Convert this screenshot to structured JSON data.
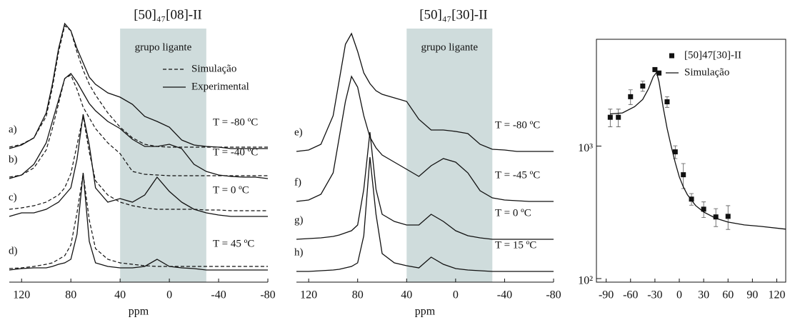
{
  "chart_data": [
    {
      "type": "line",
      "title": "[50]₄₇[08]-II",
      "xlabel": "ppm",
      "xlim": [
        130,
        -80
      ],
      "xticks": [
        120,
        80,
        40,
        0,
        -40,
        -80
      ],
      "band": [
        40,
        -30
      ],
      "band_label": "grupo ligante",
      "color": "#111111",
      "legend": [
        {
          "name": "Simulação",
          "style": "dashed"
        },
        {
          "name": "Experimental",
          "style": "solid"
        }
      ],
      "x": [
        130,
        120,
        110,
        100,
        95,
        90,
        85,
        80,
        75,
        70,
        65,
        60,
        50,
        40,
        30,
        20,
        10,
        0,
        -10,
        -20,
        -30,
        -40,
        -50,
        -60,
        -70,
        -80
      ],
      "series": [
        {
          "name": "a)",
          "label": "T = -80 ºC",
          "values": [
            0,
            0.05,
            0.15,
            0.5,
            0.9,
            1.4,
            1.75,
            1.65,
            1.4,
            1.2,
            1.0,
            0.9,
            0.78,
            0.72,
            0.62,
            0.45,
            0.38,
            0.3,
            0.12,
            0.05,
            0.03,
            0.02,
            0,
            0,
            0,
            0
          ],
          "simulation": [
            0.02,
            0.06,
            0.15,
            0.45,
            0.85,
            1.35,
            1.72,
            1.65,
            1.35,
            1.1,
            0.9,
            0.75,
            0.5,
            0.3,
            0.15,
            0.06,
            0.03,
            0.02,
            0.02,
            0.02,
            0.02,
            0.02,
            0.02,
            0.02,
            0.02,
            0.02
          ]
        },
        {
          "name": "b)",
          "label": "T = -40 ºC",
          "values": [
            0,
            0.05,
            0.2,
            0.5,
            0.8,
            1.1,
            1.4,
            1.47,
            1.35,
            1.2,
            1.05,
            0.95,
            0.8,
            0.7,
            0.55,
            0.45,
            0.45,
            0.48,
            0.42,
            0.2,
            0.1,
            0.05,
            0.03,
            0.02,
            0.02,
            0
          ],
          "simulation": [
            0.02,
            0.05,
            0.15,
            0.4,
            0.7,
            1.05,
            1.4,
            1.45,
            1.25,
            1.0,
            0.85,
            0.7,
            0.5,
            0.35,
            0.1,
            0.06,
            0.05,
            0.04,
            0.04,
            0.04,
            0.04,
            0.04,
            0.04,
            0.04,
            0.04,
            0.04
          ]
        },
        {
          "name": "c)",
          "label": "T =  0 ºC",
          "values": [
            0,
            0.05,
            0.05,
            0.1,
            0.15,
            0.2,
            0.3,
            0.4,
            0.8,
            1.43,
            1.0,
            0.4,
            0.2,
            0.25,
            0.2,
            0.3,
            0.55,
            0.35,
            0.2,
            0.1,
            0.05,
            0.02,
            0,
            0,
            0,
            0
          ],
          "simulation": [
            0.1,
            0.12,
            0.15,
            0.2,
            0.25,
            0.3,
            0.4,
            0.6,
            1.0,
            1.4,
            0.9,
            0.5,
            0.3,
            0.2,
            0.15,
            0.12,
            0.1,
            0.1,
            0.1,
            0.1,
            0.09,
            0.09,
            0.08,
            0.08,
            0.08,
            0.08
          ]
        },
        {
          "name": "d)",
          "label": "T = 45 ºC",
          "values": [
            0,
            0.02,
            0.03,
            0.03,
            0.05,
            0.08,
            0.1,
            0.15,
            0.5,
            1.36,
            0.4,
            0.1,
            0.05,
            0.03,
            0.03,
            0.05,
            0.15,
            0.05,
            0.03,
            0.02,
            0,
            0,
            0,
            0,
            0,
            0
          ],
          "simulation": [
            0.02,
            0.03,
            0.05,
            0.08,
            0.1,
            0.15,
            0.2,
            0.35,
            0.8,
            1.35,
            0.7,
            0.3,
            0.15,
            0.1,
            0.08,
            0.06,
            0.05,
            0.05,
            0.05,
            0.05,
            0.05,
            0.05,
            0.05,
            0.05,
            0.05,
            0.05
          ]
        }
      ]
    },
    {
      "type": "line",
      "title": "[50]₄₇[30]-II",
      "xlabel": "ppm",
      "xlim": [
        130,
        -80
      ],
      "xticks": [
        120,
        80,
        40,
        0,
        -40,
        -80
      ],
      "band": [
        40,
        -30
      ],
      "band_label": "grupo ligante",
      "color": "#111111",
      "x": [
        130,
        120,
        110,
        100,
        95,
        90,
        85,
        80,
        75,
        70,
        65,
        60,
        50,
        40,
        30,
        20,
        10,
        0,
        -10,
        -20,
        -30,
        -40,
        -50,
        -60,
        -70,
        -80
      ],
      "series": [
        {
          "name": "e)",
          "label": "T = -80 ºC",
          "values": [
            0,
            0.02,
            0.1,
            0.5,
            1.0,
            1.5,
            1.65,
            1.4,
            1.1,
            0.95,
            0.85,
            0.8,
            0.75,
            0.7,
            0.45,
            0.3,
            0.3,
            0.28,
            0.25,
            0.1,
            0.03,
            0.02,
            0,
            0,
            0,
            0
          ]
        },
        {
          "name": "f)",
          "label": "T = -45 ºC",
          "values": [
            0,
            0.02,
            0.1,
            0.4,
            0.9,
            1.4,
            1.75,
            1.6,
            1.2,
            0.9,
            0.75,
            0.65,
            0.55,
            0.45,
            0.35,
            0.5,
            0.6,
            0.55,
            0.4,
            0.15,
            0.05,
            0.02,
            0.01,
            0,
            0,
            0
          ]
        },
        {
          "name": "g)",
          "label": "T =  0 ºC",
          "values": [
            0,
            0.01,
            0.02,
            0.04,
            0.06,
            0.09,
            0.12,
            0.2,
            0.7,
            1.5,
            0.7,
            0.35,
            0.25,
            0.2,
            0.2,
            0.35,
            0.25,
            0.12,
            0.05,
            0.02,
            0,
            0,
            0,
            0,
            0,
            0
          ]
        },
        {
          "name": "h)",
          "label": "T = 15 ºC",
          "values": [
            0,
            0,
            0.01,
            0.02,
            0.03,
            0.05,
            0.07,
            0.12,
            0.5,
            1.6,
            0.8,
            0.25,
            0.12,
            0.08,
            0.05,
            0.2,
            0.1,
            0.04,
            0.02,
            0.01,
            0,
            0,
            0,
            0,
            0,
            0
          ]
        }
      ]
    },
    {
      "type": "scatter",
      "log_y": true,
      "xlim": [
        -102,
        131
      ],
      "xticks": [
        -90,
        -60,
        -30,
        0,
        30,
        60,
        90,
        120
      ],
      "ylim": [
        94,
        6400
      ],
      "yticks": [
        {
          "value": 1000,
          "label": "10³"
        },
        {
          "value": 100,
          "label": "10²"
        }
      ],
      "series": [
        {
          "name": "[50]47[30]-II",
          "color": "#111111",
          "x": [
            -85,
            -75,
            -60,
            -45,
            -30,
            -25,
            -15,
            -5,
            5,
            15,
            30,
            45,
            60
          ],
          "values": [
            1650,
            1650,
            2360,
            2840,
            3780,
            3560,
            2160,
            905,
            608,
            398,
            334,
            292,
            295
          ],
          "errors": [
            250,
            250,
            300,
            250,
            0,
            0,
            200,
            100,
            130,
            40,
            45,
            45,
            60
          ]
        },
        {
          "name": "Simulação",
          "color": "#111111",
          "x": [
            -85,
            -70,
            -55,
            -45,
            -38,
            -32,
            -28,
            -25,
            -20,
            -15,
            -10,
            -5,
            0,
            5,
            10,
            20,
            30,
            45,
            60,
            80,
            100,
            131
          ],
          "values": [
            1750,
            1780,
            1985,
            2250,
            2700,
            3340,
            3600,
            3060,
            1980,
            1365,
            1000,
            752,
            586,
            492,
            429,
            356,
            318,
            285,
            267,
            254,
            248,
            236
          ]
        }
      ]
    }
  ]
}
